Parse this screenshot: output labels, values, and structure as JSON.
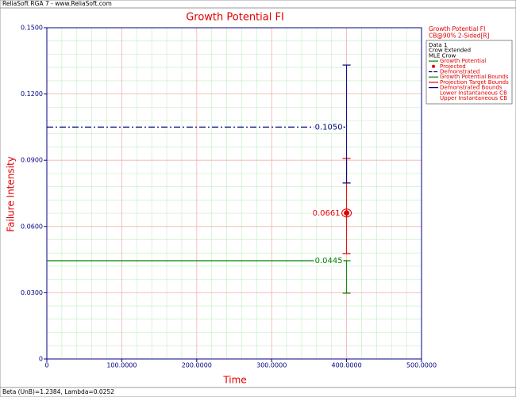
{
  "window_title": "ReliaSoft RGA 7 - www.ReliaSoft.com",
  "chart_data": {
    "type": "line",
    "title": "Growth Potential FI",
    "x_label": "Time",
    "y_label": "Failure Intensity",
    "xlim": [
      0,
      500
    ],
    "xticks": [
      0,
      {
        "value": 100,
        "label": "100.0000"
      },
      {
        "value": 200,
        "label": "200.0000"
      },
      {
        "value": 300,
        "label": "300.0000"
      },
      {
        "value": 400,
        "label": "400.0000"
      },
      {
        "value": 500,
        "label": "500.0000"
      }
    ],
    "ylim": [
      0,
      0.15
    ],
    "yticks": [
      0,
      {
        "value": 0.03,
        "label": "0.0300"
      },
      {
        "value": 0.06,
        "label": "0.0600"
      },
      {
        "value": 0.09,
        "label": "0.0900"
      },
      {
        "value": 0.12,
        "label": "0.1200"
      },
      {
        "value": 0.15,
        "label": "0.1500"
      }
    ],
    "grid": true,
    "minor_grid": 5,
    "legend_header": [
      "Growth Potential FI",
      "CB@90% 2-Sided[R]"
    ],
    "legend_info": [
      "Data 1",
      "Crow Extended",
      "MLE Crow"
    ],
    "series": [
      {
        "name": "Growth Potential",
        "color": "#008000",
        "kind": "line",
        "x": [
          0,
          400
        ],
        "values": [
          0.0445,
          0.0445
        ],
        "value_labels": [
          null,
          "0.0445"
        ]
      },
      {
        "name": "Projected",
        "color": "#e00000",
        "kind": "point",
        "x": [
          400
        ],
        "values": [
          0.0661
        ],
        "value_labels": [
          "0.0661"
        ]
      },
      {
        "name": "Demonstrated",
        "color": "#000080",
        "kind": "dashdot",
        "x": [
          0,
          400
        ],
        "values": [
          0.105,
          0.105
        ],
        "value_labels": [
          null,
          "0.1050"
        ]
      },
      {
        "name": "Growth Potential Bounds",
        "color": "#008000",
        "kind": "bounds",
        "x": [
          400,
          400
        ],
        "values": [
          0.0298,
          0.0445
        ]
      },
      {
        "name": "Projection Target Bounds",
        "color": "#e00000",
        "kind": "bounds",
        "x": [
          400,
          400
        ],
        "values": [
          0.0477,
          0.0908
        ]
      },
      {
        "name": "Demonstrated Bounds",
        "color": "#000080",
        "kind": "bounds",
        "x": [
          400,
          400
        ],
        "values": [
          0.0797,
          0.1331
        ]
      },
      {
        "name": "Lower Instantaneous CB",
        "color": "#e00000",
        "kind": "line",
        "x": [],
        "values": []
      },
      {
        "name": "Upper Instantaneous CB",
        "color": "#e00000",
        "kind": "line",
        "x": [],
        "values": []
      }
    ],
    "footer": "Beta (UnB)=1.2384, Lambda=0.0252"
  }
}
